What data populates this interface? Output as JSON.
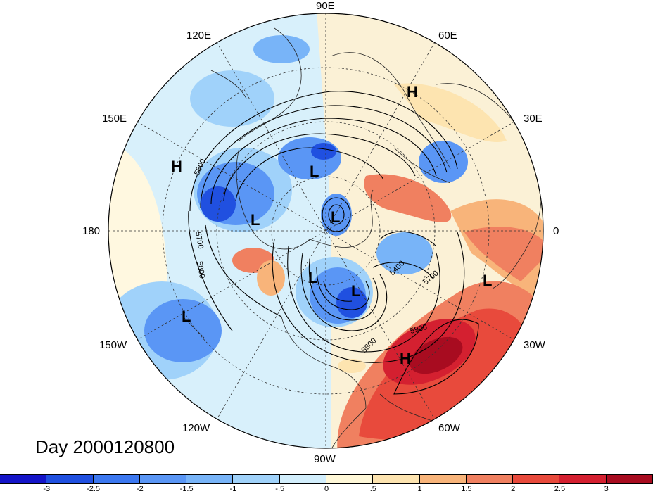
{
  "map": {
    "date_label": "Day 2000120800",
    "longitude_labels": {
      "n90e": "90E",
      "n60e": "60E",
      "n30e": "30E",
      "n0": "0",
      "n30w": "30W",
      "n60w": "60W",
      "n90w": "90W",
      "n120w": "120W",
      "n150w": "150W",
      "n180": "180",
      "n150e": "150E",
      "n120e": "120E"
    },
    "pressure_centers": {
      "l1": "L",
      "l2": "L",
      "l3": "L",
      "l4": "L",
      "l5": "L",
      "l6": "L",
      "l7": "L",
      "h1": "H",
      "h2": "H",
      "h3": "H"
    },
    "contour_labels": {
      "c5800a": "5800",
      "c5700a": "5700",
      "c5800b": "5800",
      "c5400": "5400",
      "c5700b": "5700",
      "c5900": "5900",
      "c5800c": "5800"
    }
  },
  "colorbar": {
    "colors": [
      "#1414c8",
      "#2050e0",
      "#3c78f0",
      "#5a96f5",
      "#78b4f8",
      "#a0d2fa",
      "#d2eefc",
      "#fff8d8",
      "#fde4b0",
      "#f8b47a",
      "#f08060",
      "#e84a3c",
      "#d42030",
      "#a80c20"
    ],
    "tick_labels": [
      "-3",
      "-2.5",
      "-2",
      "-1.5",
      "-1",
      "-.5",
      "0",
      ".5",
      "1",
      "1.5",
      "2",
      "2.5",
      "3"
    ]
  }
}
